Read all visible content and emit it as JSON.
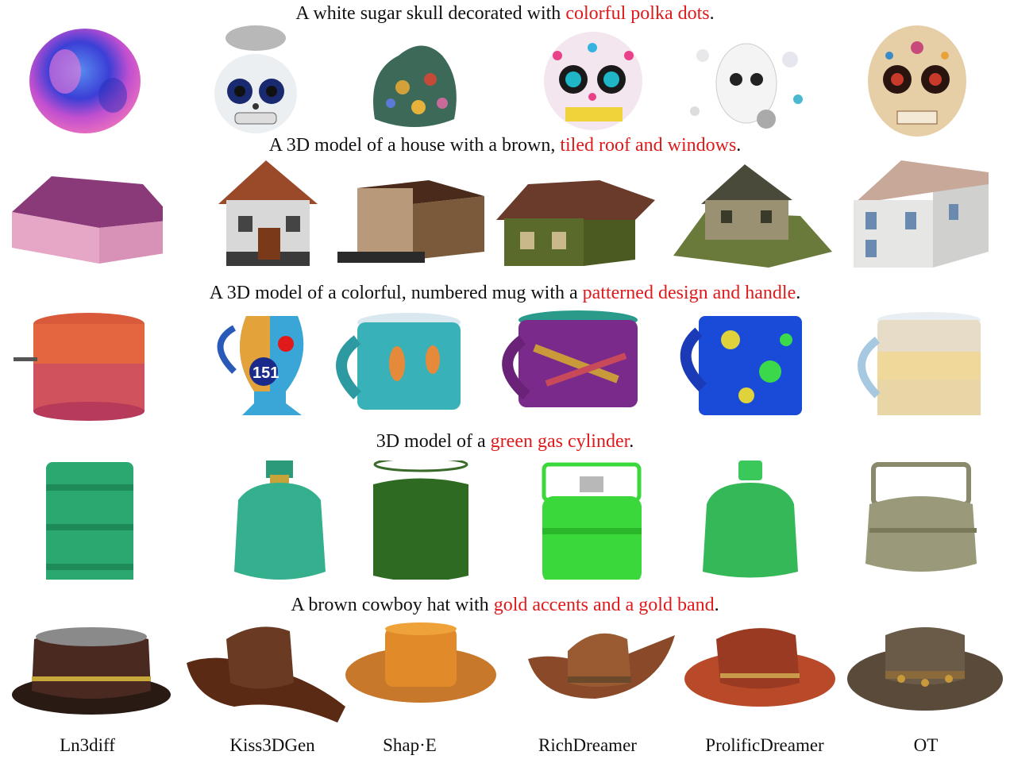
{
  "rows": [
    {
      "caption_plain": "A white sugar skull decorated with ",
      "caption_highlight": "colorful polka dots",
      "caption_end": ".",
      "object": "skull"
    },
    {
      "caption_plain": "A 3D model of a house with a brown, ",
      "caption_highlight": "tiled roof and windows",
      "caption_end": ".",
      "object": "house"
    },
    {
      "caption_plain": "A 3D model of a colorful, numbered mug with a ",
      "caption_highlight": "patterned design and handle",
      "caption_end": ".",
      "object": "mug"
    },
    {
      "caption_plain": "3D model of a ",
      "caption_highlight": "green gas cylinder",
      "caption_end": ".",
      "object": "cylinder"
    },
    {
      "caption_plain": "A brown cowboy hat with ",
      "caption_highlight": "gold accents and a gold band",
      "caption_end": ".",
      "object": "hat"
    }
  ],
  "methods": [
    "Ln3diff",
    "Kiss3DGen",
    "Shap·E",
    "RichDreamer",
    "ProlificDreamer",
    "OT"
  ],
  "mug_number": "151",
  "colors": {
    "highlight": "#e0191b",
    "text": "#111111"
  }
}
